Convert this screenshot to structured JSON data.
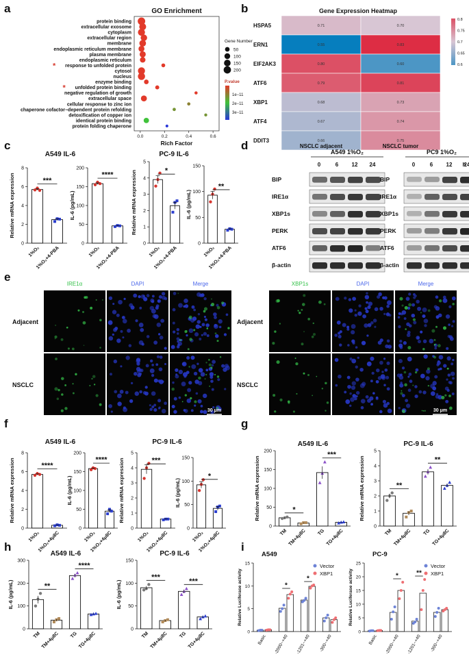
{
  "panel_labels": [
    "a",
    "b",
    "c",
    "d",
    "e",
    "f",
    "g",
    "h",
    "i"
  ],
  "chart_data": [
    {
      "id": "a",
      "type": "scatter",
      "title": "GO Enrichment",
      "xlabel": "Rich Factor",
      "x_ticks": [
        "0.0",
        "0.2",
        "0.4",
        "0.6"
      ],
      "xlim": [
        -0.05,
        0.65
      ],
      "categories": [
        "protein binding",
        "extracellular exosome",
        "cytoplasm",
        "extracellular region",
        "membrane",
        "endoplasmic reticulum membrane",
        "plasma membrane",
        "endoplasmic reticulum",
        "response to unfolded protein",
        "cytosol",
        "nucleus",
        "enzyme binding",
        "unfolded protein binding",
        "negative regulation of growth",
        "extracellular space",
        "cellular response to zinc ion",
        "chaperone cofactor−dependent protein refolding",
        "detoxification of copper ion",
        "identical protein binding",
        "protein folding chaperone"
      ],
      "starred": [
        "response to unfolded protein",
        "unfolded protein binding"
      ],
      "x": [
        0.01,
        0.02,
        0.01,
        0.03,
        0.02,
        0.01,
        0.02,
        0.02,
        0.19,
        0.01,
        0.01,
        0.05,
        0.14,
        0.46,
        0.03,
        0.4,
        0.28,
        0.54,
        0.05,
        0.22
      ],
      "gene_number": [
        210,
        170,
        180,
        140,
        150,
        110,
        120,
        90,
        25,
        180,
        190,
        50,
        30,
        10,
        110,
        12,
        12,
        8,
        80,
        6
      ],
      "p_value": [
        1e-13,
        1e-13,
        1e-13,
        1e-13,
        1e-13,
        1e-13,
        1e-13,
        1e-13,
        1e-13,
        1e-13,
        1e-13,
        1e-13,
        1e-13,
        1e-13,
        1e-13,
        8e-12,
        1e-11,
        1e-11,
        1.5e-11,
        3e-11
      ],
      "size_legend_title": "Gene Number",
      "size_legend": [
        "50",
        "100",
        "150",
        "200"
      ],
      "color_legend_title": "P.value",
      "color_legend": [
        "1e−11",
        "2e−11",
        "3e−11"
      ],
      "colors": {
        "low": "#e23a2a",
        "mid": "#3fc23b",
        "high": "#2a37d8"
      }
    },
    {
      "id": "b",
      "type": "heatmap",
      "title": "Gene Expression Heatmap",
      "rows": [
        "HSPA5",
        "ERN1",
        "EIF2AK3",
        "ATF6",
        "XBP1",
        "ATF4",
        "DDIT3"
      ],
      "columns": [
        "NSCLC adjacent",
        "NSCLC tumor"
      ],
      "values": [
        [
          0.71,
          0.7
        ],
        [
          0.55,
          0.83
        ],
        [
          0.8,
          0.6
        ],
        [
          0.79,
          0.81
        ],
        [
          0.68,
          0.73
        ],
        [
          0.67,
          0.74
        ],
        [
          0.66,
          0.75
        ]
      ],
      "cell_labels": [
        [
          "0.71",
          "0.70"
        ],
        [
          "0.55",
          "0.83"
        ],
        [
          "0.80",
          "0.60"
        ],
        [
          "0.79",
          "0.81"
        ],
        [
          "0.68",
          "0.73"
        ],
        [
          "0.67",
          "0.74"
        ],
        [
          "0.66",
          "0.75"
        ]
      ],
      "scale_ticks": [
        "0.8",
        "0.75",
        "0.7",
        "0.65",
        "0.6"
      ],
      "scale_range": [
        0.6,
        0.8
      ],
      "colors": {
        "low": "#4c96c5",
        "mid": "#d8c6d4",
        "high": "#dc5065"
      }
    },
    {
      "id": "c",
      "title_left": "A549 IL-6",
      "title_right": "PC-9 IL-6",
      "plots": [
        {
          "ylabel": "Relative mRNA expression",
          "yticks": [
            "0",
            "2",
            "4",
            "6",
            "8"
          ],
          "ylim": [
            0,
            8
          ],
          "categories": [
            "1%O₂",
            "1%O₂+4-PBA"
          ],
          "values": [
            5.7,
            2.5
          ],
          "points": [
            [
              5.65,
              5.85,
              5.6
            ],
            [
              2.3,
              2.6,
              2.55
            ]
          ],
          "sig": "***"
        },
        {
          "ylabel": "IL-6 (pg/mL)",
          "yticks": [
            "0",
            "50",
            "100",
            "150",
            "200"
          ],
          "ylim": [
            0,
            200
          ],
          "categories": [
            "1%O₂",
            "1%O₂+4-PBA"
          ],
          "values": [
            158,
            46
          ],
          "points": [
            [
              155,
              162,
              158
            ],
            [
              44,
              47,
              46
            ]
          ],
          "sig": "****"
        },
        {
          "ylabel": "Relative mRNA expression",
          "yticks": [
            "0",
            "1",
            "2",
            "3",
            "4",
            "5"
          ],
          "ylim": [
            0,
            5
          ],
          "categories": [
            "1%O₂",
            "1%O₂+4-PBA"
          ],
          "values": [
            3.9,
            2.3
          ],
          "points": [
            [
              3.5,
              3.9,
              4.3
            ],
            [
              1.9,
              2.5,
              2.6
            ]
          ],
          "sig": "*"
        },
        {
          "ylabel": "IL-6 (pg/mL)",
          "yticks": [
            "0",
            "50",
            "100",
            "150"
          ],
          "ylim": [
            0,
            150
          ],
          "categories": [
            "1%O₂",
            "1%O₂+4-PBA"
          ],
          "values": [
            93,
            27
          ],
          "points": [
            [
              80,
              95,
              105
            ],
            [
              25,
              28,
              27
            ]
          ],
          "sig": "**"
        }
      ]
    },
    {
      "id": "d",
      "type": "western_blot",
      "title_left": "A549 1%O₂",
      "title_right": "PC9 1%O₂",
      "timepoints": [
        "0",
        "6",
        "12",
        "24"
      ],
      "time_unit": "h",
      "bands": [
        "BIP",
        "IRE1α",
        "XBP1s",
        "PERK",
        "ATF6",
        "β-actin"
      ],
      "intensity_left": [
        [
          0.55,
          0.65,
          0.75,
          0.7
        ],
        [
          0.5,
          0.7,
          0.8,
          0.75
        ],
        [
          0.4,
          0.6,
          0.85,
          0.8
        ],
        [
          0.7,
          0.75,
          0.85,
          0.8
        ],
        [
          0.6,
          0.85,
          0.9,
          0.45
        ],
        [
          0.85,
          0.85,
          0.85,
          0.85
        ]
      ],
      "intensity_right": [
        [
          0.2,
          0.3,
          0.75,
          0.85
        ],
        [
          0.2,
          0.6,
          0.7,
          0.75
        ],
        [
          0.2,
          0.5,
          0.8,
          0.85
        ],
        [
          0.3,
          0.45,
          0.8,
          0.9
        ],
        [
          0.3,
          0.5,
          0.7,
          0.85
        ],
        [
          0.85,
          0.85,
          0.85,
          0.85
        ]
      ]
    },
    {
      "id": "e",
      "type": "immunofluorescence",
      "left_columns": [
        "IRE1α",
        "DAPI",
        "Merge"
      ],
      "right_columns": [
        "XBP1s",
        "DAPI",
        "Merge"
      ],
      "rows": [
        "Adjacent",
        "NSCLC"
      ],
      "scale_bar": "30 μm",
      "colors": {
        "green": "#35c24a",
        "blue": "#3a52d8"
      }
    },
    {
      "id": "f",
      "title_left": "A549 IL-6",
      "title_right": "PC-9 IL-6",
      "plots": [
        {
          "ylabel": "Relative mRNA expression",
          "yticks": [
            "0",
            "2",
            "4",
            "6",
            "8"
          ],
          "ylim": [
            0,
            8
          ],
          "categories": [
            "1%O₂",
            "1%O₂+4μ8C"
          ],
          "values": [
            5.7,
            0.3
          ],
          "points": [
            [
              5.6,
              5.8,
              5.7
            ],
            [
              0.25,
              0.35,
              0.3
            ]
          ],
          "sig": "****"
        },
        {
          "ylabel": "IL-6 (pg/mL)",
          "yticks": [
            "0",
            "50",
            "100",
            "150",
            "200"
          ],
          "ylim": [
            0,
            200
          ],
          "categories": [
            "1%O₂",
            "1%O₂+4μ8C"
          ],
          "values": [
            158,
            45
          ],
          "points": [
            [
              155,
              160,
              158
            ],
            [
              38,
              50,
              45
            ]
          ],
          "sig": "****"
        },
        {
          "ylabel": "Relative mRNA expression",
          "yticks": [
            "0",
            "1",
            "2",
            "3",
            "4",
            "5"
          ],
          "ylim": [
            0,
            5
          ],
          "categories": [
            "1%O₂",
            "1%O₂+4μ8C"
          ],
          "values": [
            3.9,
            0.6
          ],
          "points": [
            [
              3.3,
              4.0,
              4.3
            ],
            [
              0.55,
              0.6,
              0.6
            ]
          ],
          "sig": "***"
        },
        {
          "ylabel": "IL-6 (pg/mL)",
          "yticks": [
            "0",
            "50",
            "100",
            "150"
          ],
          "ylim": [
            0,
            150
          ],
          "categories": [
            "1%O₂",
            "1%O₂+4μ8C"
          ],
          "values": [
            92,
            42
          ],
          "points": [
            [
              80,
              93,
              103
            ],
            [
              35,
              45,
              47
            ]
          ],
          "sig": "*"
        }
      ]
    },
    {
      "id": "g",
      "plots": [
        {
          "title": "A549 IL-6",
          "ylabel": "Relative mRNA expression",
          "yticks": [
            "0",
            "50",
            "100",
            "150",
            "200"
          ],
          "ylim": [
            0,
            200
          ],
          "categories": [
            "TM",
            "TM+4μ8C",
            "TG",
            "TG+4μ8C"
          ],
          "values": [
            22,
            8,
            142,
            10
          ],
          "points": [
            [
              20,
              22,
              24
            ],
            [
              6,
              9,
              9
            ],
            [
              115,
              140,
              170
            ],
            [
              8,
              10,
              11
            ]
          ],
          "sigs": [
            {
              "label": "*",
              "pair": [
                0,
                1
              ]
            },
            {
              "label": "***",
              "pair": [
                2,
                3
              ]
            }
          ]
        },
        {
          "title": "PC-9 IL-6",
          "ylabel": "Relative mRNA expression",
          "yticks": [
            "0",
            "1",
            "2",
            "3",
            "4",
            "5"
          ],
          "ylim": [
            0,
            5
          ],
          "categories": [
            "TM",
            "TM+4μ8C",
            "TG",
            "TG+4μ8C"
          ],
          "values": [
            2.0,
            0.85,
            3.6,
            2.7
          ],
          "points": [
            [
              1.7,
              2.0,
              2.2
            ],
            [
              0.6,
              0.9,
              1.0
            ],
            [
              3.3,
              3.6,
              3.9
            ],
            [
              2.5,
              2.7,
              2.9
            ]
          ],
          "sigs": [
            {
              "label": "**",
              "pair": [
                0,
                1
              ]
            },
            {
              "label": "**",
              "pair": [
                2,
                3
              ]
            }
          ]
        }
      ]
    },
    {
      "id": "h",
      "plots": [
        {
          "title": "A549 IL-6",
          "ylabel": "IL-6 (pg/mL)",
          "yticks": [
            "0",
            "100",
            "200",
            "300"
          ],
          "ylim": [
            0,
            300
          ],
          "categories": [
            "TM",
            "TM+4μ8C",
            "TG",
            "TG+4μ8C"
          ],
          "values": [
            128,
            38,
            233,
            65
          ],
          "points": [
            [
              100,
              130,
              155
            ],
            [
              30,
              40,
              45
            ],
            [
              220,
              235,
              245
            ],
            [
              62,
              65,
              67
            ]
          ],
          "sigs": [
            {
              "label": "**",
              "pair": [
                0,
                1
              ]
            },
            {
              "label": "****",
              "pair": [
                2,
                3
              ]
            }
          ]
        },
        {
          "title": "PC-9 IL-6",
          "ylabel": "IL-6 (pg/mL)",
          "yticks": [
            "0",
            "50",
            "100",
            "150"
          ],
          "ylim": [
            0,
            150
          ],
          "categories": [
            "TM",
            "TM+4μ8C",
            "TG",
            "TG+4μ8C"
          ],
          "values": [
            90,
            18,
            82,
            26
          ],
          "points": [
            [
              85,
              88,
              97
            ],
            [
              15,
              18,
              20
            ],
            [
              75,
              82,
              88
            ],
            [
              22,
              26,
              28
            ]
          ],
          "sigs": [
            {
              "label": "***",
              "pair": [
                0,
                1
              ]
            },
            {
              "label": "***",
              "pair": [
                2,
                3
              ]
            }
          ]
        }
      ]
    },
    {
      "id": "i",
      "type": "bar",
      "legend": [
        "Vector",
        "XBP1"
      ],
      "legend_colors": [
        "#6d83d6",
        "#ee6f73"
      ],
      "plots": [
        {
          "title": "A549",
          "ylabel": "Relative Luciferase activity",
          "yticks": [
            "0",
            "5",
            "10",
            "15"
          ],
          "ylim": [
            0,
            15
          ],
          "categories": [
            "Basic",
            "-2000~+40",
            "-1201~+40",
            "-300~+40"
          ],
          "series": [
            {
              "name": "Vector",
              "values": [
                0.3,
                5.1,
                6.9,
                3.0
              ],
              "points": [
                [
                  0.2,
                  0.3,
                  0.3
                ],
                [
                  4.4,
                  5.0,
                  5.8
                ],
                [
                  6.5,
                  6.8,
                  7.3
                ],
                [
                  2.3,
                  3.0,
                  3.6
                ]
              ]
            },
            {
              "name": "XBP1",
              "values": [
                0.4,
                8.1,
                9.9,
                2.6
              ],
              "points": [
                [
                  0.3,
                  0.4,
                  0.4
                ],
                [
                  7.3,
                  8.2,
                  8.7
                ],
                [
                  9.5,
                  10.0,
                  10.2
                ],
                [
                  2.0,
                  2.6,
                  3.0
                ]
              ]
            }
          ],
          "sigs": [
            {
              "label": "*",
              "group": 1
            },
            {
              "label": "*",
              "group": 2
            }
          ]
        },
        {
          "title": "PC-9",
          "ylabel": "Relative Luciferase activity",
          "yticks": [
            "0",
            "5",
            "10",
            "15",
            "20",
            "25"
          ],
          "ylim": [
            0,
            25
          ],
          "categories": [
            "Basic",
            "-2000~+40",
            "-1201~+40",
            "-300~+40"
          ],
          "series": [
            {
              "name": "Vector",
              "values": [
                0.3,
                7.0,
                3.8,
                7.0
              ],
              "points": [
                [
                  0.2,
                  0.3,
                  0.3
                ],
                [
                  4.5,
                  7.2,
                  9.0
                ],
                [
                  3.0,
                  3.5,
                  4.5
                ],
                [
                  5.5,
                  7.0,
                  8.5
                ]
              ]
            },
            {
              "name": "XBP1",
              "values": [
                0.4,
                15.0,
                14.0,
                8.0
              ],
              "points": [
                [
                  0.3,
                  0.4,
                  0.4
                ],
                [
                  12.0,
                  15.0,
                  18.0
                ],
                [
                  8.0,
                  15.0,
                  19.0
                ],
                [
                  7.5,
                  8.0,
                  8.5
                ]
              ]
            }
          ],
          "sigs": [
            {
              "label": "*",
              "group": 1
            },
            {
              "label": "**",
              "group": 2
            }
          ]
        }
      ]
    }
  ]
}
